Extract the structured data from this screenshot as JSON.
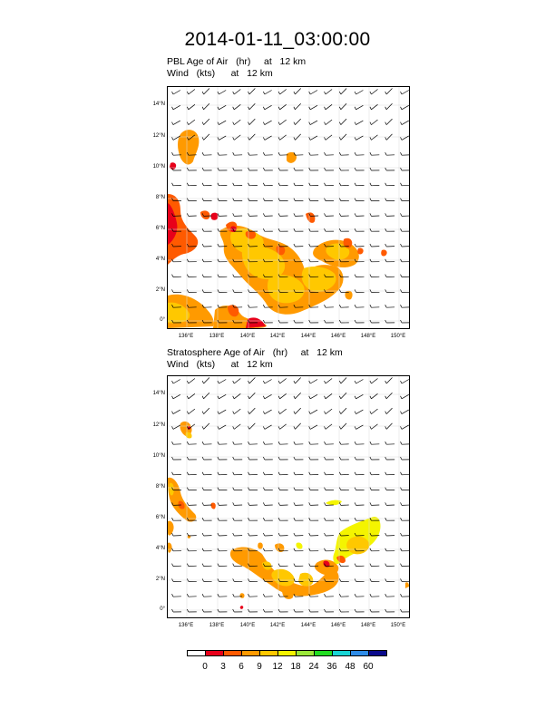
{
  "title": "2014-01-11_03:00:00",
  "panels": [
    {
      "name": "pbl",
      "title_line1": "PBL Age of Air   (hr)     at   12 km",
      "title_line2": "Wind   (kts)      at   12 km"
    },
    {
      "name": "stratosphere",
      "title_line1": "Stratosphere Age of Air   (hr)     at   12 km",
      "title_line2": "Wind   (kts)      at   12 km"
    }
  ],
  "lat_labels": [
    "14°N",
    "12°N",
    "10°N",
    "8°N",
    "6°N",
    "4°N",
    "2°N",
    "0°"
  ],
  "lon_labels": [
    "136°E",
    "138°E",
    "140°E",
    "142°E",
    "144°E",
    "146°E",
    "148°E",
    "150°E"
  ],
  "colorbar": {
    "labels": [
      "0",
      "3",
      "6",
      "9",
      "12",
      "18",
      "24",
      "36",
      "48",
      "60"
    ],
    "colors": [
      "#ffffff",
      "#e8001a",
      "#ff5a00",
      "#ff9a00",
      "#ffc800",
      "#f4f400",
      "#9be83a",
      "#22dd22",
      "#18d4d4",
      "#2e8ce8",
      "#0a0a8c"
    ]
  }
}
